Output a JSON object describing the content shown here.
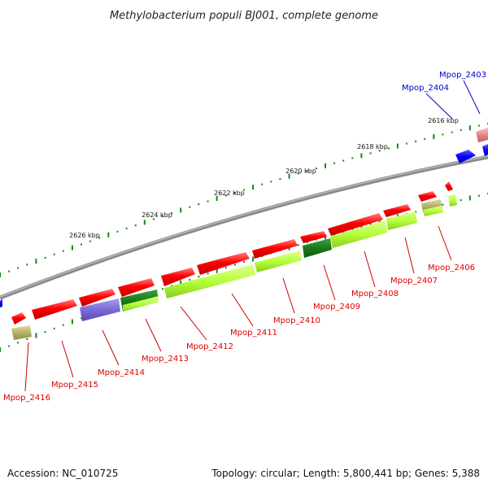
{
  "title": "Methylobacterium populi BJ001, complete genome",
  "footer": {
    "accession": "Accession: NC_010725",
    "info": "Topology: circular; Length: 5,800,441 bp; Genes: 5,388"
  },
  "colors": {
    "cds_forward": "#ff0000",
    "cds_reverse": "#0000ff",
    "cog_light_green": "#b5ff3a",
    "cog_dark_green": "#1a7a1a",
    "cog_tan": "#b7b36a",
    "cog_purple": "#7a6ad8",
    "cog_pink": "#e8848a",
    "backbone": "#808080",
    "tick": "#118811",
    "label_red": "#dd0000",
    "label_blue": "#0000cc"
  },
  "kbp_labels": [
    "2616 kbp",
    "2618 kbp",
    "2620 kbp",
    "2622 kbp",
    "2624 kbp",
    "2626 kbp"
  ],
  "genes": [
    {
      "name": "Mpop_2403",
      "color": "blue"
    },
    {
      "name": "Mpop_2404",
      "color": "blue"
    },
    {
      "name": "Mpop_2406",
      "color": "red"
    },
    {
      "name": "Mpop_2407",
      "color": "red"
    },
    {
      "name": "Mpop_2408",
      "color": "red"
    },
    {
      "name": "Mpop_2409",
      "color": "red"
    },
    {
      "name": "Mpop_2410",
      "color": "red"
    },
    {
      "name": "Mpop_2411",
      "color": "red"
    },
    {
      "name": "Mpop_2412",
      "color": "red"
    },
    {
      "name": "Mpop_2413",
      "color": "red"
    },
    {
      "name": "Mpop_2414",
      "color": "red"
    },
    {
      "name": "Mpop_2415",
      "color": "red"
    },
    {
      "name": "Mpop_2416",
      "color": "red"
    }
  ]
}
